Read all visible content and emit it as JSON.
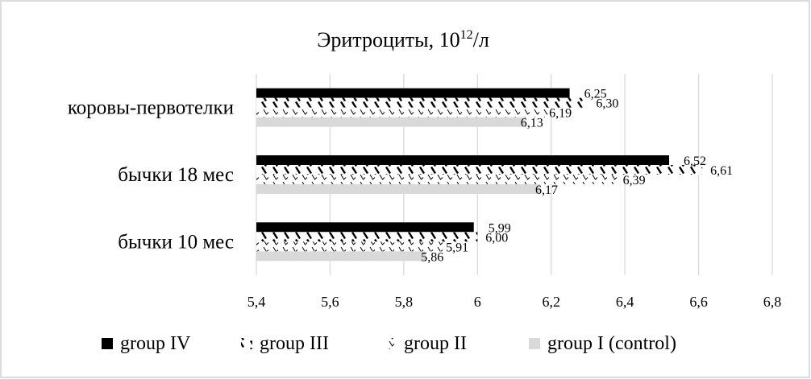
{
  "chart_data": {
    "type": "bar",
    "orientation": "horizontal",
    "title_main": "Эритроциты, 10",
    "title_sup": "12",
    "title_tail": "/л",
    "categories": [
      "бычки 10 мес",
      "бычки 18 мес",
      "коровы-первотелки"
    ],
    "series": [
      {
        "name": "group IV",
        "values": [
          5.99,
          6.52,
          6.25
        ],
        "labels": [
          "5,99",
          "6,52",
          "6,25"
        ],
        "pattern": "solid-black"
      },
      {
        "name": "group III",
        "values": [
          6.0,
          6.61,
          6.3
        ],
        "labels": [
          "6,00",
          "6,61",
          "6,30"
        ],
        "pattern": "diagonal-dashes"
      },
      {
        "name": "group II",
        "values": [
          5.91,
          6.39,
          6.19
        ],
        "labels": [
          "5,91",
          "6,39",
          "6,19"
        ],
        "pattern": "small-hooks"
      },
      {
        "name": "group I (control)",
        "values": [
          5.86,
          6.17,
          6.13
        ],
        "labels": [
          "5,86",
          "6,17",
          "6,13"
        ],
        "pattern": "solid-light-gray"
      }
    ],
    "xlim": [
      5.4,
      6.8
    ],
    "xticks": [
      5.4,
      5.6,
      5.8,
      6.0,
      6.2,
      6.4,
      6.6,
      6.8
    ],
    "xtick_labels": [
      "5,4",
      "5,6",
      "5,8",
      "6",
      "6,2",
      "6,4",
      "6,6",
      "6,8"
    ],
    "grid": true,
    "legend": "bottom",
    "colors": {
      "solid": "#000000",
      "light": "#d9d9d9",
      "grid": "#d9d9d9",
      "text": "#000000"
    }
  }
}
